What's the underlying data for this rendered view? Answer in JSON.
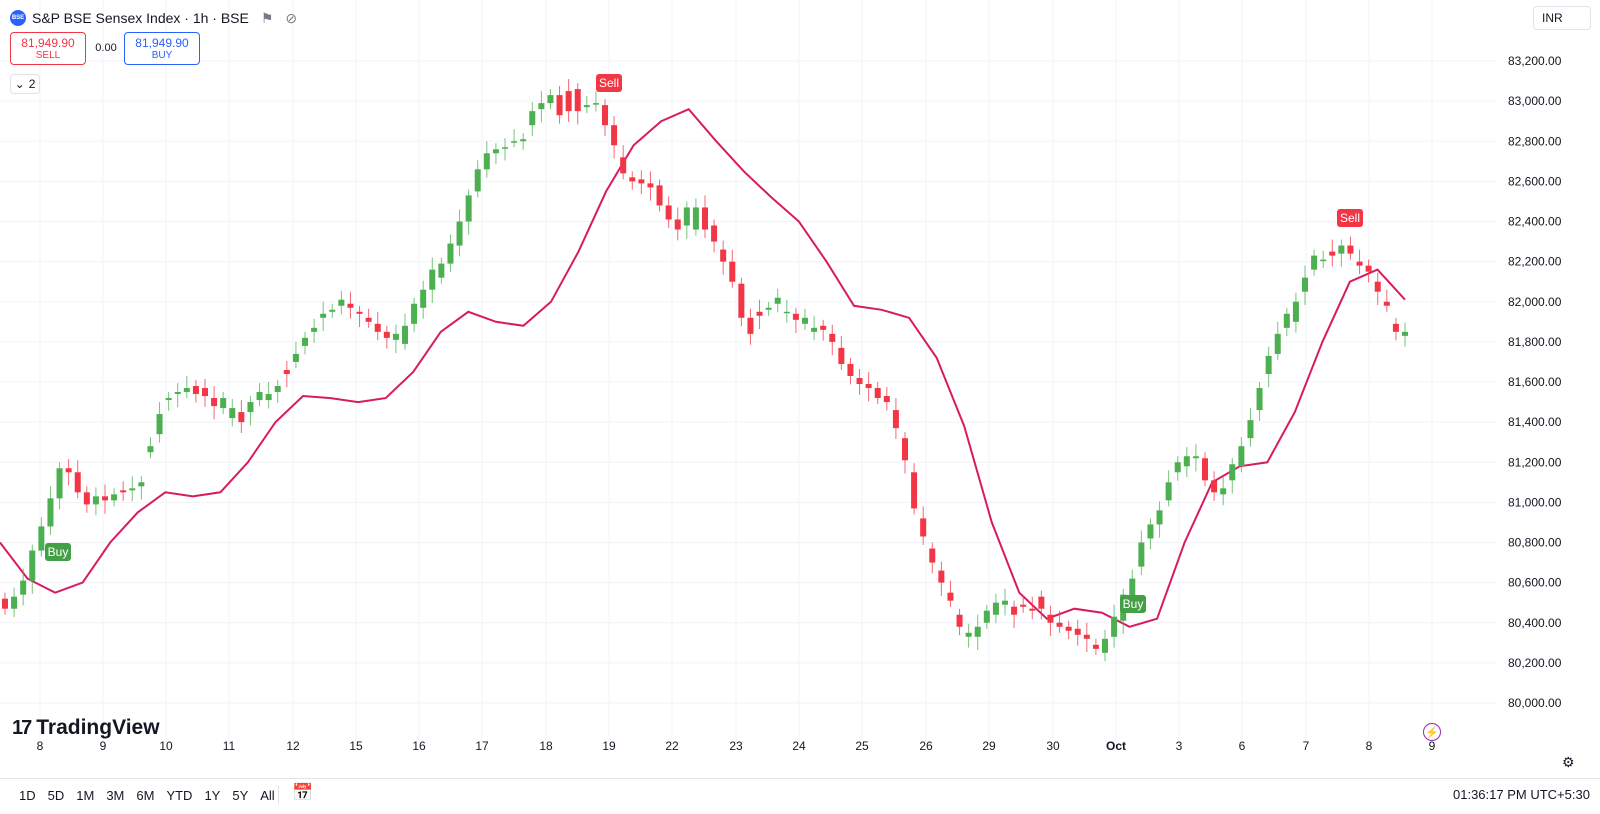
{
  "header": {
    "symbol_badge": "BSE",
    "symbol_title": "S&P BSE Sensex Index · 1h · BSE",
    "sell_price": "81,949.90",
    "sell_label": "SELL",
    "spread": "0.00",
    "buy_price": "81,949.90",
    "buy_label": "BUY",
    "indicator_count": "2",
    "currency": "INR"
  },
  "branding": {
    "name": "TradingView"
  },
  "bottom_bar": {
    "ranges": [
      "1D",
      "5D",
      "1M",
      "3M",
      "6M",
      "YTD",
      "1Y",
      "5Y",
      "All"
    ],
    "clock": "01:36:17 PM UTC+5:30"
  },
  "icons": {
    "visibility": "eye-off-icon",
    "flag": "flag-icon",
    "collapse": "chevron-down-icon",
    "calendar": "calendar-range-icon",
    "settings": "gear-icon",
    "bolt": "lightning-icon"
  },
  "colors": {
    "up": "#4caf50",
    "down": "#f23645",
    "ma_line": "#d81b60",
    "grid": "#f0f3fa",
    "buy_marker": "#43a047",
    "sell_marker": "#f23645"
  },
  "chart_data": {
    "type": "candlestick",
    "x_tick_labels": [
      "8",
      "9",
      "10",
      "11",
      "12",
      "15",
      "16",
      "17",
      "18",
      "19",
      "22",
      "23",
      "24",
      "25",
      "26",
      "29",
      "30",
      "Oct",
      "3",
      "6",
      "7",
      "8",
      "9"
    ],
    "y_ticks": [
      "83,200.00",
      "83,000.00",
      "82,800.00",
      "82,600.00",
      "82,400.00",
      "82,200.00",
      "82,000.00",
      "81,800.00",
      "81,600.00",
      "81,400.00",
      "81,200.00",
      "81,000.00",
      "80,800.00",
      "80,600.00",
      "80,400.00",
      "80,200.00",
      "80,000.00"
    ],
    "ylim": [
      79940,
      83270
    ],
    "moving_average_approx": [
      80800,
      80620,
      80550,
      80600,
      80800,
      80950,
      81050,
      81030,
      81050,
      81200,
      81400,
      81530,
      81520,
      81500,
      81520,
      81650,
      81850,
      81950,
      81900,
      81880,
      82000,
      82250,
      82550,
      82780,
      82900,
      82960,
      82800,
      82650,
      82520,
      82400,
      82200,
      81980,
      81960,
      81920,
      81720,
      81380,
      80900,
      80550,
      80420,
      80470,
      80450,
      80380,
      80420,
      80800,
      81100,
      81180,
      81200,
      81450,
      81800,
      82100,
      82160,
      82010
    ],
    "candles_approx": [
      [
        80520,
        80470
      ],
      [
        80470,
        80530
      ],
      [
        80540,
        80610
      ],
      [
        80610,
        80760
      ],
      [
        80760,
        80880
      ],
      [
        80880,
        81020
      ],
      [
        81020,
        81170
      ],
      [
        81170,
        81150
      ],
      [
        81150,
        81050
      ],
      [
        81050,
        80990
      ],
      [
        80990,
        81030
      ],
      [
        81030,
        81010
      ],
      [
        81010,
        81040
      ],
      [
        81060,
        81050
      ],
      [
        81060,
        81070
      ],
      [
        81080,
        81100
      ],
      [
        81250,
        81280
      ],
      [
        81340,
        81440
      ],
      [
        81510,
        81520
      ],
      [
        81540,
        81550
      ],
      [
        81550,
        81570
      ],
      [
        81580,
        81540
      ],
      [
        81570,
        81530
      ],
      [
        81520,
        81480
      ],
      [
        81470,
        81520
      ],
      [
        81420,
        81470
      ],
      [
        81450,
        81400
      ],
      [
        81450,
        81500
      ],
      [
        81510,
        81550
      ],
      [
        81510,
        81540
      ],
      [
        81550,
        81580
      ],
      [
        81660,
        81640
      ],
      [
        81700,
        81740
      ],
      [
        81780,
        81820
      ],
      [
        81850,
        81870
      ],
      [
        81920,
        81940
      ],
      [
        81950,
        81960
      ],
      [
        81980,
        82010
      ],
      [
        81990,
        81970
      ],
      [
        81950,
        81940
      ],
      [
        81920,
        81900
      ],
      [
        81890,
        81850
      ],
      [
        81850,
        81820
      ],
      [
        81810,
        81840
      ],
      [
        81790,
        81880
      ],
      [
        81890,
        81990
      ],
      [
        81970,
        82060
      ],
      [
        82060,
        82160
      ],
      [
        82120,
        82190
      ],
      [
        82190,
        82290
      ],
      [
        82280,
        82400
      ],
      [
        82400,
        82530
      ],
      [
        82550,
        82660
      ],
      [
        82660,
        82740
      ],
      [
        82740,
        82760
      ],
      [
        82770,
        82770
      ],
      [
        82800,
        82800
      ],
      [
        82800,
        82810
      ],
      [
        82880,
        82950
      ],
      [
        82960,
        82990
      ],
      [
        82990,
        83030
      ],
      [
        83030,
        82930
      ],
      [
        83050,
        82950
      ],
      [
        83060,
        82950
      ],
      [
        82970,
        82980
      ],
      [
        82990,
        82990
      ],
      [
        82980,
        82880
      ],
      [
        82880,
        82780
      ],
      [
        82720,
        82640
      ],
      [
        82620,
        82600
      ],
      [
        82610,
        82590
      ],
      [
        82590,
        82570
      ],
      [
        82580,
        82480
      ],
      [
        82480,
        82410
      ],
      [
        82410,
        82360
      ],
      [
        82380,
        82470
      ],
      [
        82360,
        82470
      ],
      [
        82470,
        82360
      ],
      [
        82380,
        82300
      ],
      [
        82260,
        82200
      ],
      [
        82200,
        82100
      ],
      [
        82090,
        81920
      ],
      [
        81920,
        81840
      ],
      [
        81950,
        81930
      ],
      [
        81960,
        81970
      ],
      [
        81990,
        82020
      ],
      [
        81950,
        81950
      ],
      [
        81940,
        81910
      ],
      [
        81890,
        81920
      ],
      [
        81850,
        81870
      ],
      [
        81880,
        81860
      ],
      [
        81840,
        81800
      ],
      [
        81770,
        81690
      ],
      [
        81690,
        81630
      ],
      [
        81620,
        81590
      ],
      [
        81590,
        81570
      ],
      [
        81570,
        81520
      ],
      [
        81530,
        81500
      ],
      [
        81460,
        81370
      ],
      [
        81320,
        81210
      ],
      [
        81150,
        80970
      ],
      [
        80920,
        80830
      ],
      [
        80770,
        80700
      ],
      [
        80660,
        80600
      ],
      [
        80550,
        80510
      ],
      [
        80440,
        80380
      ],
      [
        80330,
        80350
      ],
      [
        80330,
        80380
      ],
      [
        80400,
        80460
      ],
      [
        80440,
        80500
      ],
      [
        80490,
        80510
      ],
      [
        80480,
        80440
      ],
      [
        80490,
        80480
      ],
      [
        80470,
        80460
      ],
      [
        80530,
        80470
      ],
      [
        80440,
        80400
      ],
      [
        80400,
        80380
      ],
      [
        80380,
        80360
      ],
      [
        80370,
        80340
      ],
      [
        80340,
        80320
      ],
      [
        80290,
        80270
      ],
      [
        80250,
        80320
      ],
      [
        80330,
        80430
      ],
      [
        80410,
        80540
      ],
      [
        80510,
        80620
      ],
      [
        80680,
        80800
      ],
      [
        80820,
        80890
      ],
      [
        80890,
        80960
      ],
      [
        81010,
        81100
      ],
      [
        81150,
        81200
      ],
      [
        81180,
        81230
      ],
      [
        81220,
        81230
      ],
      [
        81220,
        81110
      ],
      [
        81110,
        81050
      ],
      [
        81040,
        81070
      ],
      [
        81110,
        81190
      ],
      [
        81180,
        81280
      ],
      [
        81320,
        81410
      ],
      [
        81460,
        81570
      ],
      [
        81640,
        81730
      ],
      [
        81740,
        81840
      ],
      [
        81870,
        81940
      ],
      [
        81900,
        82000
      ],
      [
        82050,
        82120
      ],
      [
        82160,
        82230
      ],
      [
        82210,
        82210
      ],
      [
        82250,
        82230
      ],
      [
        82240,
        82280
      ],
      [
        82280,
        82240
      ],
      [
        82200,
        82180
      ],
      [
        82180,
        82150
      ],
      [
        82100,
        82050
      ],
      [
        82000,
        81980
      ],
      [
        81890,
        81850
      ],
      [
        81830,
        81850
      ]
    ],
    "signals": [
      {
        "label": "Buy",
        "type": "buy",
        "x_label": "8"
      },
      {
        "label": "Sell",
        "type": "sell",
        "x_label": "19"
      },
      {
        "label": "Buy",
        "type": "buy",
        "x_label": "Oct"
      },
      {
        "label": "Sell",
        "type": "sell",
        "x_label": "8"
      }
    ]
  }
}
